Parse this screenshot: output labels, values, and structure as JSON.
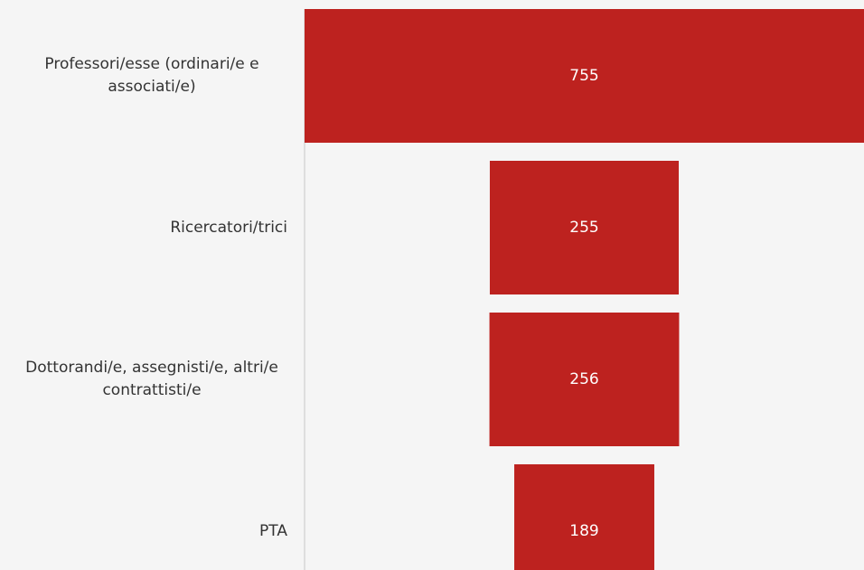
{
  "chart_data": {
    "type": "funnel",
    "categories": [
      "Professori/esse (ordinari/e e associati/e)",
      "Ricercatori/trici",
      "Dottorandi/e, assegnisti/e, altri/e contrattisti/e",
      "PTA"
    ],
    "values": [
      755,
      255,
      256,
      189
    ],
    "color": "#bd221f"
  }
}
